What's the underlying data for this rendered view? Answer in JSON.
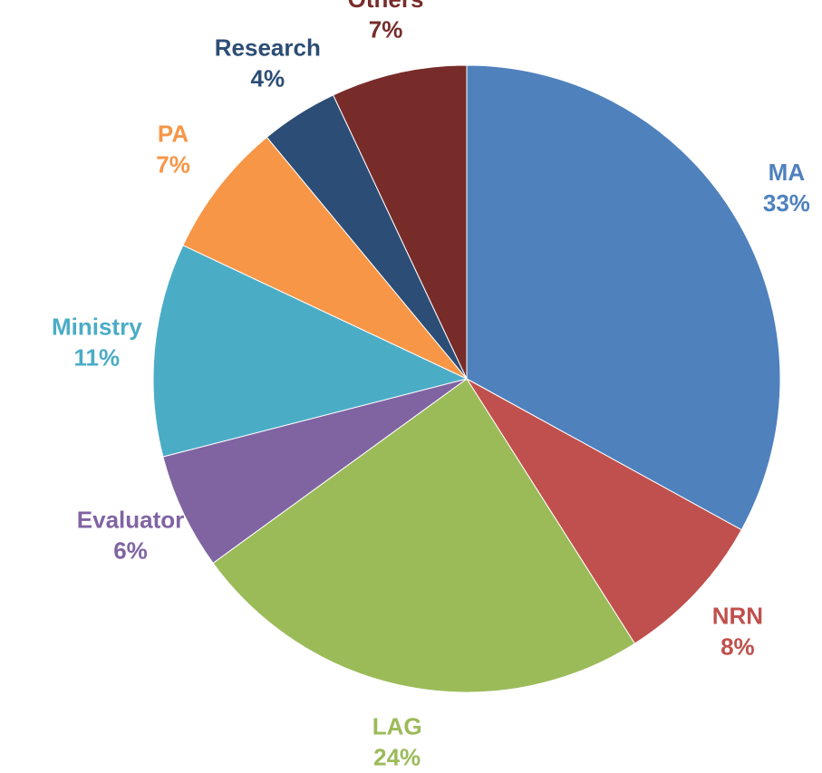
{
  "chart_data": {
    "type": "pie",
    "categories": [
      "MA",
      "NRN",
      "LAG",
      "Evaluator",
      "Ministry",
      "PA",
      "Research",
      "Others"
    ],
    "values": [
      33,
      8,
      24,
      6,
      11,
      7,
      4,
      7
    ],
    "value_labels": [
      "33%",
      "8%",
      "24%",
      "6%",
      "11%",
      "7%",
      "4%",
      "7%"
    ],
    "colors": [
      "#4f81bd",
      "#c0504d",
      "#9bbb59",
      "#8064a2",
      "#4bacc6",
      "#f79646",
      "#2c4d75",
      "#772c2a"
    ]
  }
}
